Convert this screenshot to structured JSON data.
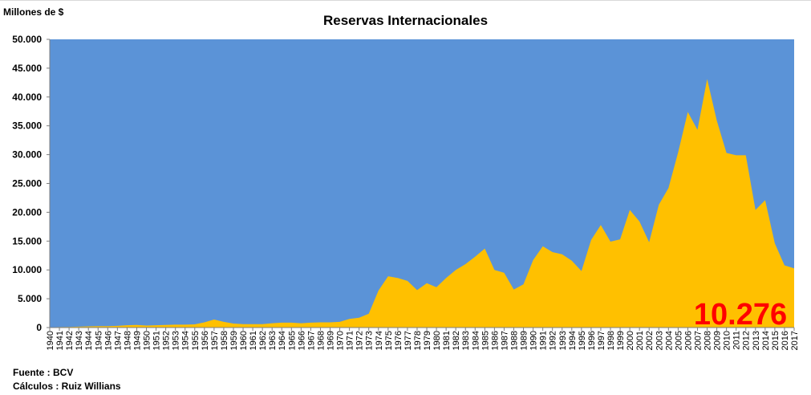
{
  "chart_data": {
    "type": "area",
    "title": "Reservas Internacionales",
    "ylabel": "Millones de $",
    "xlabel": "",
    "ylim": [
      0,
      50000
    ],
    "y_ticks": [
      "0",
      "5.000",
      "10.000",
      "15.000",
      "20.000",
      "25.000",
      "30.000",
      "35.000",
      "40.000",
      "45.000",
      "50.000"
    ],
    "x": [
      1940,
      1941,
      1942,
      1943,
      1944,
      1945,
      1946,
      1947,
      1948,
      1949,
      1950,
      1951,
      1952,
      1953,
      1954,
      1955,
      1956,
      1957,
      1958,
      1959,
      1960,
      1961,
      1962,
      1963,
      1964,
      1965,
      1966,
      1967,
      1968,
      1969,
      1970,
      1971,
      1972,
      1973,
      1974,
      1975,
      1976,
      1977,
      1978,
      1979,
      1980,
      1981,
      1982,
      1983,
      1984,
      1985,
      1986,
      1987,
      1988,
      1989,
      1990,
      1991,
      1992,
      1993,
      1994,
      1995,
      1996,
      1997,
      1998,
      1999,
      2000,
      2001,
      2002,
      2003,
      2004,
      2005,
      2006,
      2007,
      2008,
      2009,
      2010,
      2011,
      2012,
      2013,
      2014,
      2015,
      2016,
      2017
    ],
    "values": [
      50,
      80,
      100,
      150,
      200,
      250,
      250,
      300,
      400,
      450,
      350,
      400,
      450,
      500,
      500,
      550,
      900,
      1400,
      1000,
      700,
      600,
      600,
      600,
      750,
      850,
      850,
      750,
      850,
      900,
      900,
      1000,
      1500,
      1700,
      2400,
      6400,
      8900,
      8600,
      8100,
      6500,
      7700,
      7000,
      8600,
      10000,
      11000,
      12300,
      13700,
      10000,
      9500,
      6600,
      7500,
      11700,
      14100,
      13100,
      12700,
      11600,
      9800,
      15200,
      17800,
      14900,
      15300,
      20400,
      18400,
      14800,
      21300,
      24200,
      30400,
      37400,
      34300,
      43100,
      35900,
      30300,
      29900,
      29900,
      20400,
      22100,
      14600,
      10800,
      10276
    ],
    "series": [
      {
        "name": "",
        "values_ref": "values"
      }
    ],
    "annotation": "10.276",
    "colors": {
      "background": "#5b93d7",
      "area": "#ffc000",
      "annotation": "#ff0000"
    },
    "grid": false,
    "legend": "none"
  },
  "footer": {
    "source": "Fuente : BCV",
    "calc": "Cálculos : Ruiz Willians"
  }
}
